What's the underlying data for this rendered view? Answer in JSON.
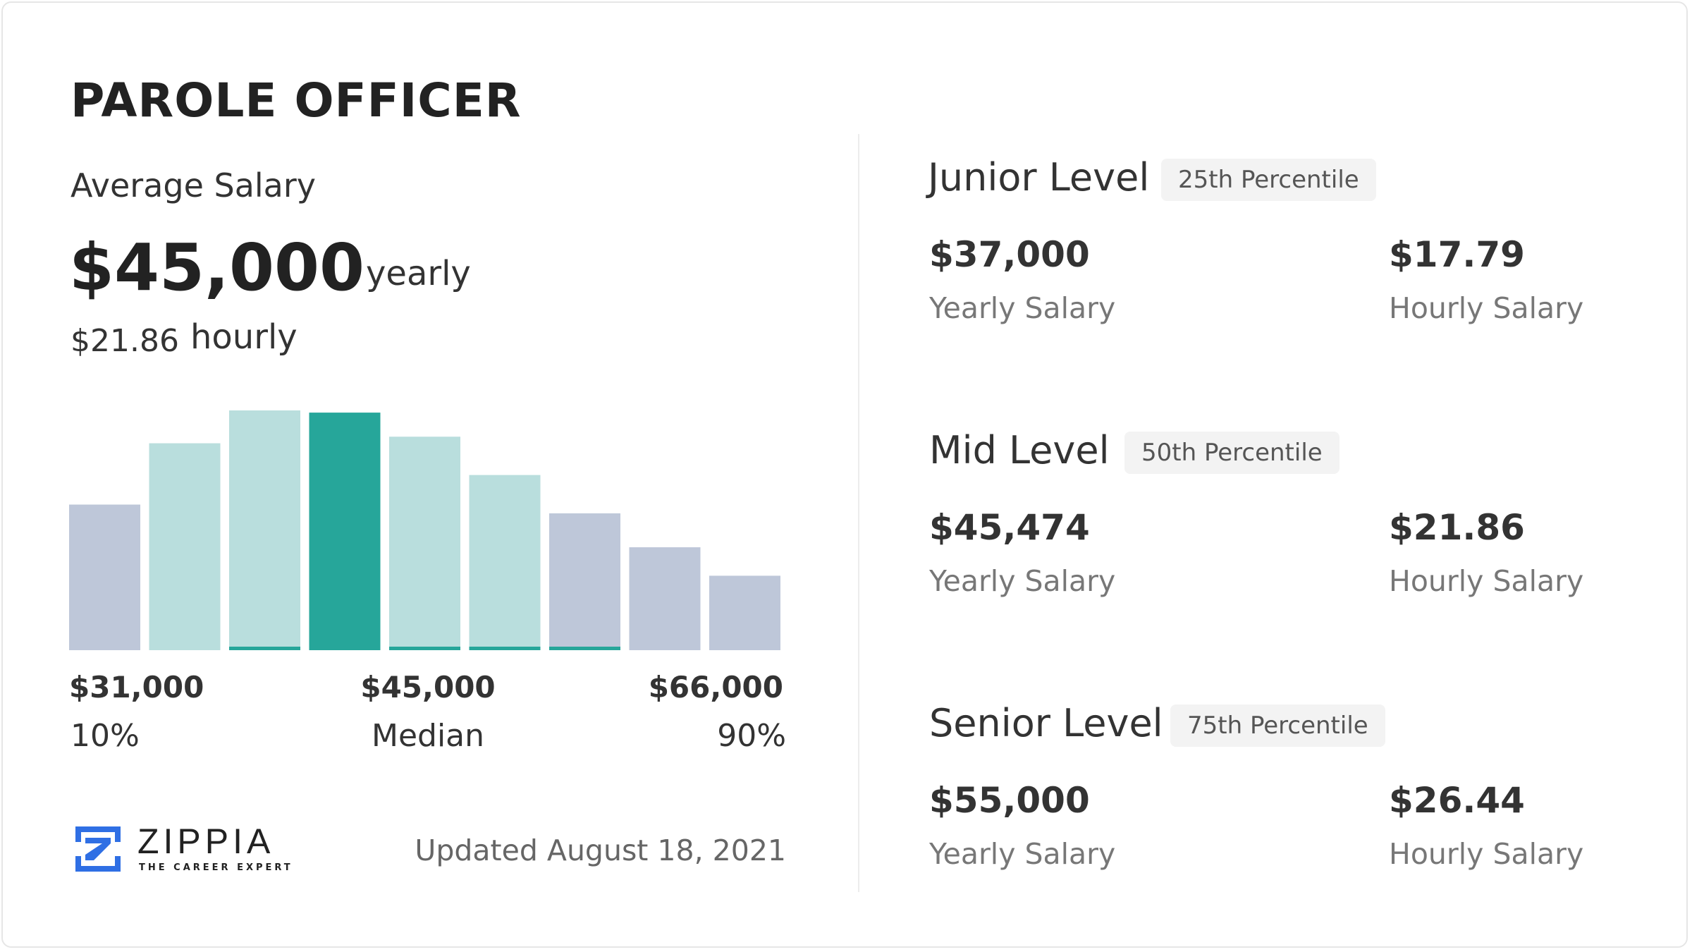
{
  "title": "PAROLE OFFICER",
  "average": {
    "label": "Average Salary",
    "yearly": "$45,000",
    "yearly_unit": "yearly",
    "hourly": "$21.86",
    "hourly_unit": "hourly"
  },
  "chart_data": {
    "type": "bar",
    "title": "",
    "xlabel": "",
    "ylabel": "",
    "relative_heights": [
      133,
      189,
      219,
      217,
      195,
      160,
      125,
      94,
      68
    ],
    "bar_colors": [
      "#bec7d9",
      "#b9dedd",
      "#b9dedd",
      "#26a69a",
      "#b9dedd",
      "#b9dedd",
      "#bec7d9",
      "#bec7d9",
      "#bec7d9"
    ],
    "underline_bars": [
      2,
      4,
      5,
      6
    ],
    "highlight_color": "#26a69a",
    "axis_labels": [
      {
        "value": "$31,000",
        "caption": "10%"
      },
      {
        "value": "$45,000",
        "caption": "Median"
      },
      {
        "value": "$66,000",
        "caption": "90%"
      }
    ]
  },
  "footer": {
    "brand": "ZIPPIA",
    "tagline": "THE CAREER EXPERT",
    "brand_color": "#2f6fe4",
    "updated": "Updated August 18, 2021"
  },
  "levels": [
    {
      "title": "Junior Level",
      "badge": "25th Percentile",
      "yearly": "$37,000",
      "yearly_label": "Yearly Salary",
      "hourly": "$17.79",
      "hourly_label": "Hourly Salary"
    },
    {
      "title": "Mid Level",
      "badge": "50th Percentile",
      "yearly": "$45,474",
      "yearly_label": "Yearly Salary",
      "hourly": "$21.86",
      "hourly_label": "Hourly Salary"
    },
    {
      "title": "Senior Level",
      "badge": "75th Percentile",
      "yearly": "$55,000",
      "yearly_label": "Yearly Salary",
      "hourly": "$26.44",
      "hourly_label": "Hourly Salary"
    }
  ]
}
